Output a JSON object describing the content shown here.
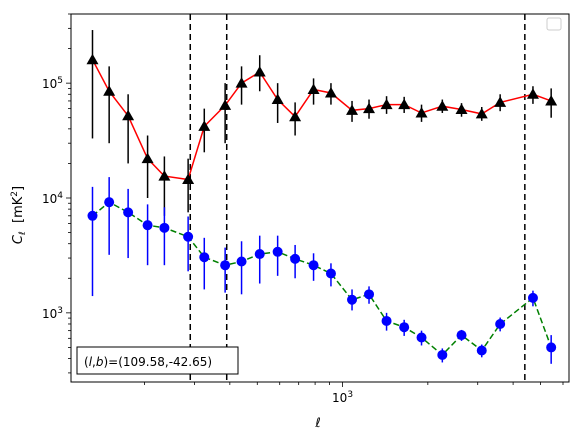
{
  "chart_data": {
    "type": "line",
    "xlabel": "ℓ",
    "ylabel": "C_ℓ  [mK²]",
    "xscale": "log",
    "yscale": "log",
    "xlim": [
      110,
      6300
    ],
    "ylim": [
      250,
      400000
    ],
    "x_tick_labels": [
      {
        "value": 1000,
        "text": "10^3"
      }
    ],
    "y_tick_labels": [
      {
        "value": 1000,
        "text": "10^3"
      },
      {
        "value": 10000,
        "text": "10^4"
      },
      {
        "value": 100000,
        "text": "10^5"
      }
    ],
    "annotation": "(l,b)=(109.58,-42.65)",
    "annotation_position": "bottom-left",
    "legend": "top-right, empty",
    "vlines": [
      {
        "x": 290,
        "style": "dashed",
        "color": "#000000"
      },
      {
        "x": 390,
        "style": "dashed",
        "color": "#000000"
      },
      {
        "x": 4400,
        "style": "dashed",
        "color": "#000000"
      }
    ],
    "series": [
      {
        "marker": "triangle",
        "marker_color": "#000000",
        "line_color": "#ff0000",
        "line_style": "solid",
        "errorbar_color": "#000000",
        "points": [
          {
            "x": 131,
            "y": 160000,
            "lo": 33000,
            "hi": 290000
          },
          {
            "x": 150,
            "y": 85000,
            "lo": 30000,
            "hi": 140000
          },
          {
            "x": 175,
            "y": 52000,
            "lo": 20000,
            "hi": 80000
          },
          {
            "x": 205,
            "y": 22000,
            "lo": 10000,
            "hi": 35000
          },
          {
            "x": 235,
            "y": 15500,
            "lo": 7000,
            "hi": 23000
          },
          {
            "x": 285,
            "y": 14500,
            "lo": 7500,
            "hi": 22000
          },
          {
            "x": 325,
            "y": 42000,
            "lo": 25000,
            "hi": 60000
          },
          {
            "x": 385,
            "y": 64000,
            "lo": 30000,
            "hi": 100000
          },
          {
            "x": 440,
            "y": 100000,
            "lo": 65000,
            "hi": 140000
          },
          {
            "x": 510,
            "y": 125000,
            "lo": 85000,
            "hi": 175000
          },
          {
            "x": 590,
            "y": 72000,
            "lo": 45000,
            "hi": 100000
          },
          {
            "x": 680,
            "y": 51000,
            "lo": 35000,
            "hi": 68000
          },
          {
            "x": 790,
            "y": 88000,
            "lo": 65000,
            "hi": 110000
          },
          {
            "x": 910,
            "y": 82000,
            "lo": 65000,
            "hi": 100000
          },
          {
            "x": 1080,
            "y": 58000,
            "lo": 46000,
            "hi": 70000
          },
          {
            "x": 1240,
            "y": 60000,
            "lo": 49000,
            "hi": 72000
          },
          {
            "x": 1430,
            "y": 65000,
            "lo": 54000,
            "hi": 77000
          },
          {
            "x": 1650,
            "y": 65000,
            "lo": 55000,
            "hi": 76000
          },
          {
            "x": 1900,
            "y": 55000,
            "lo": 46000,
            "hi": 65000
          },
          {
            "x": 2250,
            "y": 63000,
            "lo": 55000,
            "hi": 72000
          },
          {
            "x": 2630,
            "y": 59000,
            "lo": 51000,
            "hi": 67000
          },
          {
            "x": 3100,
            "y": 54000,
            "lo": 47000,
            "hi": 62000
          },
          {
            "x": 3600,
            "y": 68000,
            "lo": 57000,
            "hi": 80000
          },
          {
            "x": 4700,
            "y": 80000,
            "lo": 66000,
            "hi": 94000
          },
          {
            "x": 5450,
            "y": 70000,
            "lo": 50000,
            "hi": 90000
          }
        ]
      },
      {
        "marker": "circle",
        "marker_color": "#0000ff",
        "line_color": "#008000",
        "line_style": "dashed",
        "errorbar_color": "#0000ff",
        "points": [
          {
            "x": 131,
            "y": 7000,
            "lo": 1400,
            "hi": 12500
          },
          {
            "x": 150,
            "y": 9200,
            "lo": 3200,
            "hi": 15200
          },
          {
            "x": 175,
            "y": 7500,
            "lo": 3000,
            "hi": 12000
          },
          {
            "x": 205,
            "y": 5800,
            "lo": 2600,
            "hi": 8800
          },
          {
            "x": 235,
            "y": 5500,
            "lo": 2600,
            "hi": 8300
          },
          {
            "x": 285,
            "y": 4600,
            "lo": 2300,
            "hi": 6900
          },
          {
            "x": 325,
            "y": 3050,
            "lo": 1600,
            "hi": 4500
          },
          {
            "x": 385,
            "y": 2600,
            "lo": 1500,
            "hi": 3700
          },
          {
            "x": 440,
            "y": 2800,
            "lo": 1450,
            "hi": 4200
          },
          {
            "x": 510,
            "y": 3250,
            "lo": 1800,
            "hi": 4700
          },
          {
            "x": 590,
            "y": 3400,
            "lo": 2100,
            "hi": 4700
          },
          {
            "x": 680,
            "y": 2950,
            "lo": 2000,
            "hi": 3900
          },
          {
            "x": 790,
            "y": 2600,
            "lo": 1900,
            "hi": 3300
          },
          {
            "x": 910,
            "y": 2200,
            "lo": 1700,
            "hi": 2700
          },
          {
            "x": 1080,
            "y": 1300,
            "lo": 1050,
            "hi": 1600
          },
          {
            "x": 1240,
            "y": 1450,
            "lo": 1200,
            "hi": 1700
          },
          {
            "x": 1430,
            "y": 850,
            "lo": 700,
            "hi": 1000
          },
          {
            "x": 1650,
            "y": 750,
            "lo": 630,
            "hi": 870
          },
          {
            "x": 1900,
            "y": 610,
            "lo": 520,
            "hi": 700
          },
          {
            "x": 2250,
            "y": 430,
            "lo": 370,
            "hi": 490
          },
          {
            "x": 2630,
            "y": 640,
            "lo": 570,
            "hi": 710
          },
          {
            "x": 3100,
            "y": 470,
            "lo": 410,
            "hi": 530
          },
          {
            "x": 3600,
            "y": 800,
            "lo": 690,
            "hi": 910
          },
          {
            "x": 4700,
            "y": 1350,
            "lo": 1140,
            "hi": 1560
          },
          {
            "x": 5450,
            "y": 500,
            "lo": 360,
            "hi": 640
          }
        ]
      }
    ]
  }
}
